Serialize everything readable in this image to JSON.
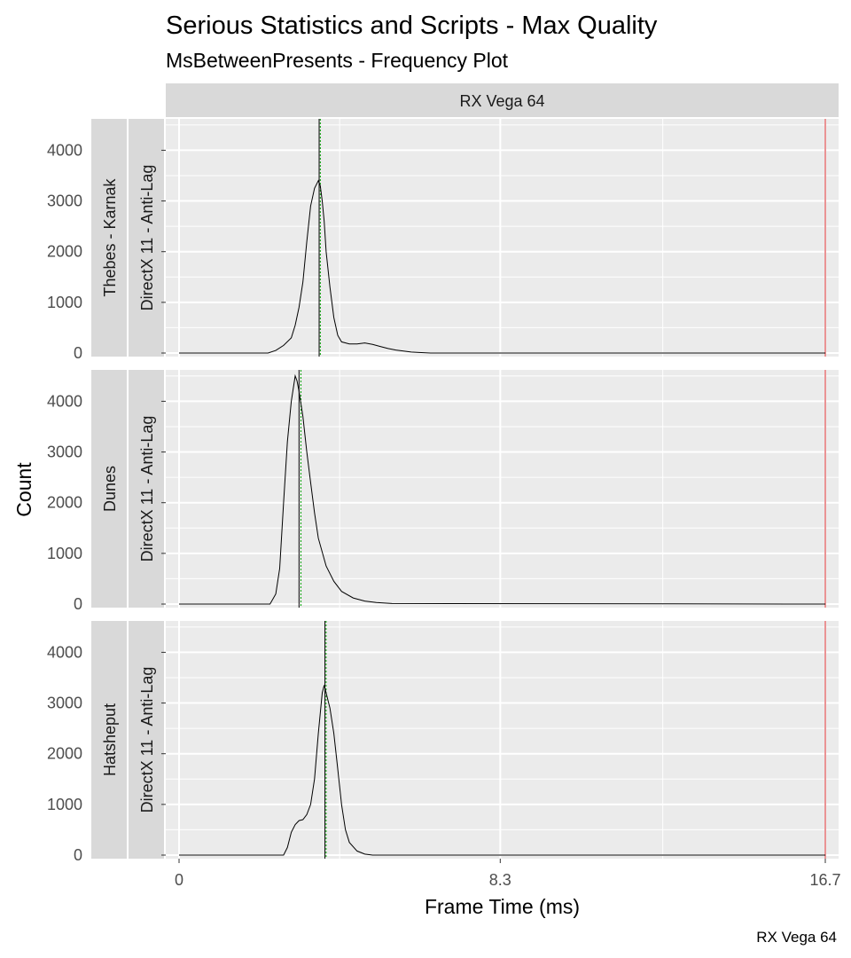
{
  "chart_data": {
    "type": "line",
    "title": "Serious Statistics and Scripts - Max Quality",
    "subtitle": "MsBetweenPresents - Frequency Plot",
    "xlabel": "Frame Time (ms)",
    "ylabel": "Count",
    "caption": "RX Vega 64",
    "column_facet": "RX Vega 64",
    "xlim": [
      0,
      16.7
    ],
    "ylim": [
      0,
      4500
    ],
    "x_ticks": [
      0,
      8.3,
      16.7
    ],
    "x_tick_labels": [
      "0",
      "8.3",
      "16.7"
    ],
    "y_ticks": [
      0,
      1000,
      2000,
      3000,
      4000
    ],
    "y_tick_labels": [
      "0",
      "1000",
      "2000",
      "3000",
      "4000"
    ],
    "reference_lines": [
      {
        "x": 16.7,
        "color": "#d62728"
      }
    ],
    "grid": true,
    "legend": "none",
    "panels": [
      {
        "row_label": "Thebes - Karnak",
        "api_label": "DirectX 11 - Anti-Lag",
        "mean": 3.65,
        "median": 3.62,
        "x": [
          0,
          2.3,
          2.5,
          2.7,
          2.9,
          3.0,
          3.1,
          3.2,
          3.3,
          3.4,
          3.5,
          3.6,
          3.65,
          3.7,
          3.75,
          3.8,
          3.9,
          4.0,
          4.1,
          4.2,
          4.4,
          4.6,
          4.8,
          5.0,
          5.2,
          5.4,
          5.6,
          5.8,
          6.0,
          6.2,
          6.5,
          16.7
        ],
        "y": [
          0,
          0,
          50,
          150,
          300,
          550,
          900,
          1400,
          2200,
          2900,
          3250,
          3400,
          3300,
          3000,
          2600,
          2000,
          1300,
          700,
          350,
          220,
          180,
          180,
          200,
          170,
          130,
          90,
          60,
          40,
          20,
          10,
          0,
          0
        ]
      },
      {
        "row_label": "Dunes",
        "api_label": "DirectX 11 - Anti-Lag",
        "mean": 3.15,
        "median": 3.1,
        "x": [
          0,
          2.35,
          2.5,
          2.6,
          2.7,
          2.8,
          2.9,
          3.0,
          3.05,
          3.1,
          3.2,
          3.3,
          3.4,
          3.5,
          3.6,
          3.8,
          4.0,
          4.2,
          4.5,
          4.8,
          5.1,
          5.5,
          16.7
        ],
        "y": [
          0,
          0,
          200,
          700,
          2000,
          3200,
          4000,
          4500,
          4400,
          4200,
          3700,
          3000,
          2400,
          1800,
          1300,
          750,
          450,
          250,
          120,
          60,
          30,
          10,
          0
        ]
      },
      {
        "row_label": "Hatsheput",
        "api_label": "DirectX 11 - Anti-Lag",
        "mean": 3.8,
        "median": 3.77,
        "x": [
          0,
          2.7,
          2.8,
          2.9,
          3.0,
          3.1,
          3.2,
          3.3,
          3.4,
          3.5,
          3.6,
          3.7,
          3.75,
          3.8,
          3.9,
          4.0,
          4.1,
          4.2,
          4.3,
          4.4,
          4.6,
          4.8,
          5.0,
          16.7
        ],
        "y": [
          0,
          0,
          150,
          450,
          600,
          680,
          700,
          800,
          1000,
          1500,
          2400,
          3200,
          3350,
          3200,
          2900,
          2400,
          1700,
          1000,
          500,
          250,
          80,
          20,
          0,
          0
        ]
      }
    ]
  }
}
